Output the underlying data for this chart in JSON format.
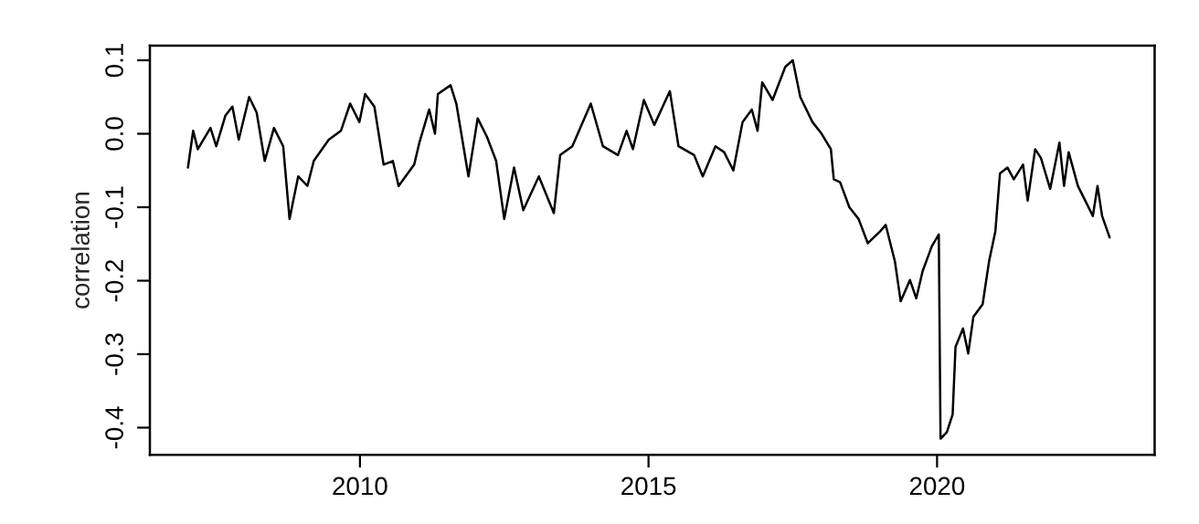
{
  "chart_data": {
    "type": "line",
    "ylabel": "correlation",
    "x": [
      2007.02,
      2007.11,
      2007.19,
      2007.41,
      2007.51,
      2007.67,
      2007.79,
      2007.9,
      2008.08,
      2008.21,
      2008.35,
      2008.51,
      2008.67,
      2008.78,
      2008.93,
      2009.09,
      2009.2,
      2009.46,
      2009.67,
      2009.83,
      2009.99,
      2010.09,
      2010.25,
      2010.41,
      2010.57,
      2010.67,
      2010.94,
      2011.03,
      2011.2,
      2011.3,
      2011.35,
      2011.57,
      2011.67,
      2011.88,
      2012.04,
      2012.2,
      2012.36,
      2012.5,
      2012.67,
      2012.83,
      2013.1,
      2013.36,
      2013.47,
      2013.68,
      2014.0,
      2014.21,
      2014.47,
      2014.62,
      2014.73,
      2014.92,
      2015.1,
      2015.37,
      2015.52,
      2015.79,
      2015.94,
      2016.16,
      2016.31,
      2016.47,
      2016.63,
      2016.79,
      2016.89,
      2016.97,
      2017.15,
      2017.37,
      2017.5,
      2017.63,
      2017.84,
      2018.0,
      2018.16,
      2018.21,
      2018.32,
      2018.48,
      2018.64,
      2018.8,
      2019.01,
      2019.11,
      2019.27,
      2019.37,
      2019.53,
      2019.64,
      2019.75,
      2019.91,
      2020.03,
      2020.06,
      2020.17,
      2020.27,
      2020.32,
      2020.45,
      2020.54,
      2020.63,
      2020.79,
      2020.9,
      2021.01,
      2021.09,
      2021.22,
      2021.33,
      2021.49,
      2021.57,
      2021.7,
      2021.8,
      2021.96,
      2022.12,
      2022.2,
      2022.28,
      2022.44,
      2022.7,
      2022.78,
      2022.86,
      2022.99
    ],
    "series": [
      {
        "color": "#000000",
        "values": [
          -0.046,
          0.004,
          -0.021,
          0.008,
          -0.017,
          0.025,
          0.037,
          -0.008,
          0.05,
          0.029,
          -0.037,
          0.008,
          -0.017,
          -0.116,
          -0.058,
          -0.071,
          -0.037,
          -0.008,
          0.004,
          0.041,
          0.016,
          0.054,
          0.037,
          -0.042,
          -0.037,
          -0.071,
          -0.042,
          -0.012,
          0.033,
          0.0,
          0.054,
          0.066,
          0.041,
          -0.058,
          0.021,
          -0.004,
          -0.037,
          -0.116,
          -0.046,
          -0.104,
          -0.058,
          -0.108,
          -0.029,
          -0.017,
          0.041,
          -0.017,
          -0.029,
          0.004,
          -0.021,
          0.046,
          0.012,
          0.058,
          -0.017,
          -0.029,
          -0.058,
          -0.017,
          -0.025,
          -0.05,
          0.016,
          0.033,
          0.004,
          0.07,
          0.046,
          0.091,
          0.1,
          0.05,
          0.016,
          0.0,
          -0.021,
          -0.062,
          -0.066,
          -0.1,
          -0.116,
          -0.149,
          -0.133,
          -0.124,
          -0.174,
          -0.228,
          -0.199,
          -0.224,
          -0.187,
          -0.153,
          -0.137,
          -0.415,
          -0.406,
          -0.382,
          -0.29,
          -0.265,
          -0.299,
          -0.249,
          -0.232,
          -0.174,
          -0.133,
          -0.054,
          -0.046,
          -0.062,
          -0.042,
          -0.091,
          -0.021,
          -0.033,
          -0.075,
          -0.012,
          -0.071,
          -0.025,
          -0.071,
          -0.112,
          -0.071,
          -0.112,
          -0.141
        ]
      }
    ],
    "xlim": [
      2006.36,
      2023.77
    ],
    "xticks": [
      2010,
      2015,
      2020
    ],
    "ylim": [
      -0.437,
      0.12
    ],
    "yticks": [
      {
        "value": 0.1,
        "label": "0.1"
      },
      {
        "value": 0.0,
        "label": "0.0"
      },
      {
        "value": -0.1,
        "label": "-0.1"
      },
      {
        "value": -0.2,
        "label": "-0.2"
      },
      {
        "value": -0.3,
        "label": "-0.3"
      },
      {
        "value": -0.4,
        "label": "-0.4"
      }
    ],
    "grid": false,
    "line_style": "solid"
  }
}
